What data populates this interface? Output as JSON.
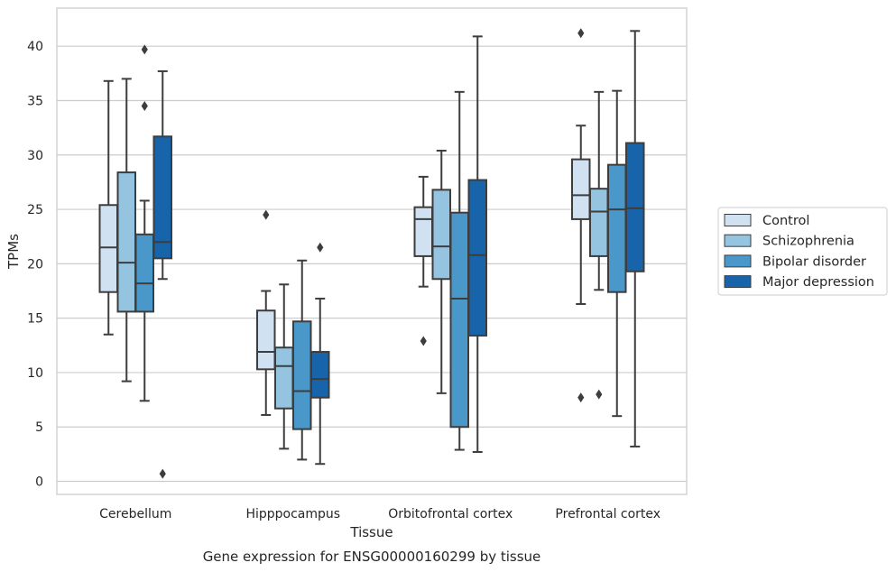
{
  "chart_data": {
    "type": "box",
    "caption": "Gene expression for ENSG00000160299 by tissue",
    "xlabel": "Tissue",
    "ylabel": "TPMs",
    "ylim": [
      -1.2,
      43.5
    ],
    "yticks": [
      0,
      5,
      10,
      15,
      20,
      25,
      30,
      35,
      40
    ],
    "grid": true,
    "legend_position": "right",
    "categories": [
      "Cerebellum",
      "Hipppocampus",
      "Orbitofrontal cortex",
      "Prefrontal cortex"
    ],
    "series": [
      {
        "name": "Control",
        "color": "#d0e1f2",
        "boxes": [
          {
            "whislo": 13.5,
            "q1": 17.4,
            "med": 21.5,
            "q3": 25.4,
            "whishi": 36.8,
            "fliers": []
          },
          {
            "whislo": 6.1,
            "q1": 10.3,
            "med": 11.9,
            "q3": 15.7,
            "whishi": 17.5,
            "fliers": [
              24.5
            ]
          },
          {
            "whislo": 17.9,
            "q1": 20.7,
            "med": 24.1,
            "q3": 25.2,
            "whishi": 28.0,
            "fliers": [
              12.9
            ]
          },
          {
            "whislo": 16.3,
            "q1": 24.1,
            "med": 26.3,
            "q3": 29.6,
            "whishi": 32.7,
            "fliers": [
              41.2,
              7.7
            ]
          }
        ]
      },
      {
        "name": "Schizophrenia",
        "color": "#94c4df",
        "boxes": [
          {
            "whislo": 9.2,
            "q1": 15.6,
            "med": 20.1,
            "q3": 28.4,
            "whishi": 37.0,
            "fliers": []
          },
          {
            "whislo": 3.0,
            "q1": 6.7,
            "med": 10.6,
            "q3": 12.3,
            "whishi": 18.1,
            "fliers": []
          },
          {
            "whislo": 8.1,
            "q1": 18.6,
            "med": 21.6,
            "q3": 26.8,
            "whishi": 30.4,
            "fliers": []
          },
          {
            "whislo": 17.6,
            "q1": 20.7,
            "med": 24.8,
            "q3": 26.9,
            "whishi": 35.8,
            "fliers": [
              8.0
            ]
          }
        ]
      },
      {
        "name": "Bipolar disorder",
        "color": "#4a98c9",
        "boxes": [
          {
            "whislo": 7.4,
            "q1": 15.6,
            "med": 18.2,
            "q3": 22.7,
            "whishi": 25.8,
            "fliers": [
              39.7,
              34.5
            ]
          },
          {
            "whislo": 2.0,
            "q1": 4.8,
            "med": 8.3,
            "q3": 14.7,
            "whishi": 20.3,
            "fliers": []
          },
          {
            "whislo": 2.9,
            "q1": 5.0,
            "med": 16.8,
            "q3": 24.7,
            "whishi": 35.8,
            "fliers": []
          },
          {
            "whislo": 6.0,
            "q1": 17.4,
            "med": 25.0,
            "q3": 29.1,
            "whishi": 35.9,
            "fliers": []
          }
        ]
      },
      {
        "name": "Major depression",
        "color": "#1764ab",
        "boxes": [
          {
            "whislo": 18.6,
            "q1": 20.5,
            "med": 22.0,
            "q3": 31.7,
            "whishi": 37.7,
            "fliers": [
              0.7
            ]
          },
          {
            "whislo": 1.6,
            "q1": 7.7,
            "med": 9.4,
            "q3": 11.9,
            "whishi": 16.8,
            "fliers": [
              21.5
            ]
          },
          {
            "whislo": 2.7,
            "q1": 13.4,
            "med": 20.8,
            "q3": 27.7,
            "whishi": 40.9,
            "fliers": []
          },
          {
            "whislo": 3.2,
            "q1": 19.3,
            "med": 25.1,
            "q3": 31.1,
            "whishi": 41.4,
            "fliers": []
          }
        ]
      }
    ]
  }
}
